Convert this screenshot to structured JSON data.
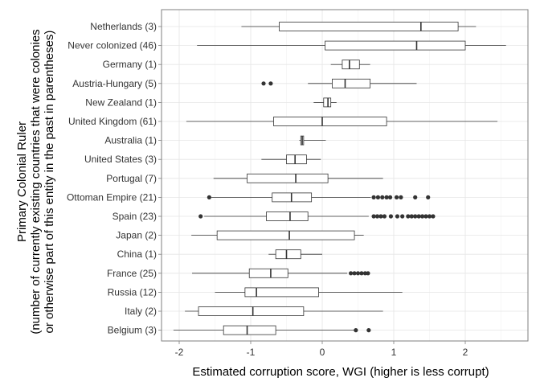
{
  "chart_data": {
    "type": "boxplot",
    "orientation": "horizontal",
    "xlabel": "Estimated corruption score, WGI (higher is less corrupt)",
    "ylabel_lines": [
      "Primary Colonial Ruler",
      "(number of currently existing countries that were colonies",
      "or otherwise part of this entity in the past in parentheses)"
    ],
    "xlim": [
      -2.25,
      2.8
    ],
    "xticks": [
      -2,
      -1,
      0,
      1,
      2
    ],
    "grid": true,
    "categories": [
      {
        "label": "Netherlands (3)",
        "min": -1.13,
        "q1": -0.6,
        "median": 1.38,
        "q3": 1.9,
        "max": 2.15,
        "outliers": []
      },
      {
        "label": "Never colonized (46)",
        "min": -1.75,
        "q1": 0.04,
        "median": 1.32,
        "q3": 2.0,
        "max": 2.57,
        "outliers": []
      },
      {
        "label": "Germany (1)",
        "min": 0.12,
        "q1": 0.28,
        "median": 0.38,
        "q3": 0.52,
        "max": 0.67,
        "outliers": []
      },
      {
        "label": "Austria-Hungary (5)",
        "min": -0.2,
        "q1": 0.14,
        "median": 0.32,
        "q3": 0.67,
        "max": 1.32,
        "outliers": [
          -0.82,
          -0.72
        ]
      },
      {
        "label": "New Zealand (1)",
        "min": -0.12,
        "q1": 0.02,
        "median": 0.08,
        "q3": 0.12,
        "max": 0.2,
        "outliers": []
      },
      {
        "label": "United Kingdom (61)",
        "min": -1.9,
        "q1": -0.68,
        "median": 0.0,
        "q3": 0.9,
        "max": 2.45,
        "outliers": []
      },
      {
        "label": "Australia (1)",
        "min": -0.32,
        "q1": -0.3,
        "median": -0.28,
        "q3": -0.26,
        "max": 0.05,
        "outliers": []
      },
      {
        "label": "United States (3)",
        "min": -0.85,
        "q1": -0.5,
        "median": -0.38,
        "q3": -0.22,
        "max": -0.02,
        "outliers": []
      },
      {
        "label": "Portugal (7)",
        "min": -1.52,
        "q1": -1.05,
        "median": -0.37,
        "q3": 0.08,
        "max": 0.85,
        "outliers": []
      },
      {
        "label": "Ottoman Empire (21)",
        "min": -1.55,
        "q1": -0.7,
        "median": -0.43,
        "q3": -0.15,
        "max": 0.68,
        "outliers": [
          -1.58,
          0.72,
          0.78,
          0.84,
          0.9,
          0.95,
          1.04,
          1.1,
          1.3,
          1.48
        ]
      },
      {
        "label": "Spain (23)",
        "min": -1.65,
        "q1": -0.78,
        "median": -0.45,
        "q3": -0.2,
        "max": 0.65,
        "outliers": [
          -1.7,
          0.72,
          0.77,
          0.82,
          0.87,
          0.96,
          1.05,
          1.12,
          1.2,
          1.25,
          1.3,
          1.35,
          1.4,
          1.45,
          1.5,
          1.55
        ]
      },
      {
        "label": "Japan (2)",
        "min": -1.83,
        "q1": -1.47,
        "median": -0.46,
        "q3": 0.45,
        "max": 0.58,
        "outliers": []
      },
      {
        "label": "China (1)",
        "min": -0.75,
        "q1": -0.65,
        "median": -0.5,
        "q3": -0.3,
        "max": 0.0,
        "outliers": []
      },
      {
        "label": "France (25)",
        "min": -1.82,
        "q1": -1.02,
        "median": -0.72,
        "q3": -0.48,
        "max": 0.35,
        "outliers": [
          0.4,
          0.45,
          0.5,
          0.55,
          0.6,
          0.64
        ]
      },
      {
        "label": "Russia (12)",
        "min": -1.5,
        "q1": -1.08,
        "median": -0.92,
        "q3": -0.05,
        "max": 1.12,
        "outliers": []
      },
      {
        "label": "Italy (2)",
        "min": -1.92,
        "q1": -1.73,
        "median": -0.97,
        "q3": -0.26,
        "max": 0.85,
        "outliers": []
      },
      {
        "label": "Belgium (3)",
        "min": -2.08,
        "q1": -1.38,
        "median": -1.05,
        "q3": -0.65,
        "max": 0.45,
        "outliers": [
          0.47,
          0.65
        ]
      }
    ]
  }
}
